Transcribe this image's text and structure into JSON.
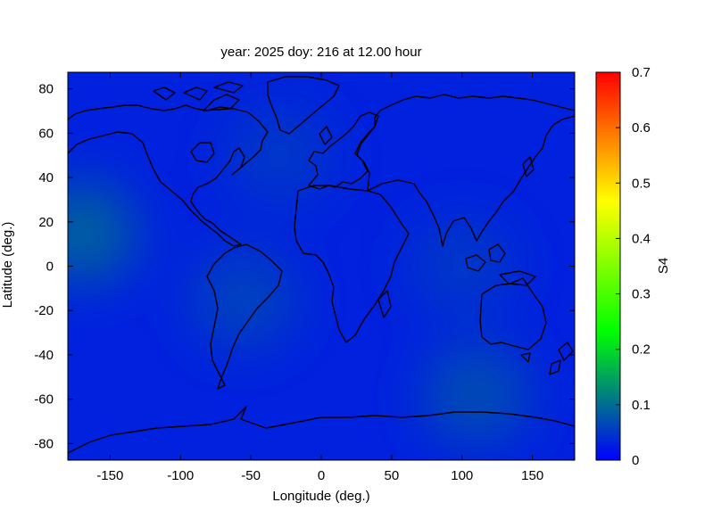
{
  "chart_data": {
    "type": "heatmap",
    "title": "year: 2025 doy: 216 at 12.00 hour",
    "xlabel": "Longitude (deg.)",
    "ylabel": "Latitude (deg.)",
    "xlim": [
      -180,
      180
    ],
    "ylim": [
      -87.5,
      87.5
    ],
    "x_ticks": [
      -150,
      -100,
      -50,
      0,
      50,
      100,
      150
    ],
    "y_ticks": [
      -80,
      -60,
      -40,
      -20,
      0,
      20,
      40,
      60,
      80
    ],
    "colorbar": {
      "label": "S4",
      "range": [
        0,
        0.7
      ],
      "ticks": [
        0,
        0.1,
        0.2,
        0.3,
        0.4,
        0.5,
        0.6,
        0.7
      ],
      "colors": [
        "#0000ff",
        "#00ff00",
        "#ffff00",
        "#ff0000"
      ]
    },
    "background_value": 0.03,
    "features": [
      {
        "lon": -170,
        "lat": 15,
        "value": 0.09
      },
      {
        "lon": -55,
        "lat": -15,
        "value": 0.06
      },
      {
        "lon": 110,
        "lat": -58,
        "value": 0.07
      },
      {
        "lon": -30,
        "lat": 50,
        "value": 0.05
      },
      {
        "lon": 100,
        "lat": 0,
        "value": 0.05
      }
    ],
    "overlay": "coastlines"
  }
}
